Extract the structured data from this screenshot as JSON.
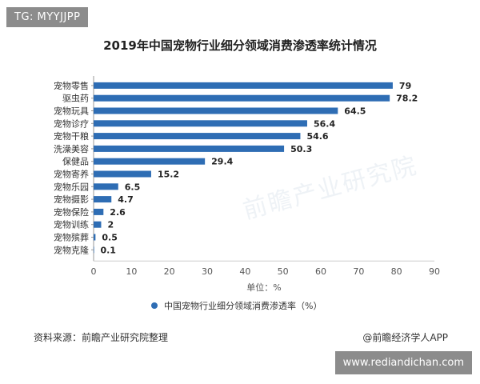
{
  "overlay": {
    "top_left_tag": "TG: MYYJJPP",
    "bottom_right_tag": "www.rediandichan.com"
  },
  "watermark_text": "前瞻产业研究院",
  "colors": {
    "bar": "#2e6db4",
    "axis": "#bbbbbb",
    "text": "#333333"
  },
  "chart_data": {
    "type": "bar",
    "orientation": "horizontal",
    "title": "2019年中国宠物行业细分领域消费渗透率统计情况",
    "categories": [
      "宠物零售",
      "驱虫药",
      "宠物玩具",
      "宠物诊疗",
      "宠物干粮",
      "洗澡美容",
      "保健品",
      "宠物寄养",
      "宠物乐园",
      "宠物摄影",
      "宠物保险",
      "宠物训练",
      "宠物殡葬",
      "宠物克隆"
    ],
    "series": [
      {
        "name": "中国宠物行业细分领域消费渗透率（%）",
        "values": [
          79,
          78.2,
          64.5,
          56.4,
          54.6,
          50.3,
          29.4,
          15.2,
          6.5,
          4.7,
          2.6,
          2,
          0.5,
          0.1
        ]
      }
    ],
    "data_labels": [
      "79",
      "78.2",
      "64.5",
      "56.4",
      "54.6",
      "50.3",
      "29.4",
      "15.2",
      "6.5",
      "4.7",
      "2.6",
      "2",
      "0.5",
      "0.1"
    ],
    "xlim": [
      0,
      90
    ],
    "xticks": [
      "0",
      "10",
      "20",
      "30",
      "40",
      "50",
      "60",
      "70",
      "80",
      "90"
    ],
    "xlabel": "单位：%",
    "legend_position": "bottom",
    "grid": false
  },
  "footer": {
    "source": "资料来源：前瞻产业研究院整理",
    "credit": "@前瞻经济学人APP"
  }
}
